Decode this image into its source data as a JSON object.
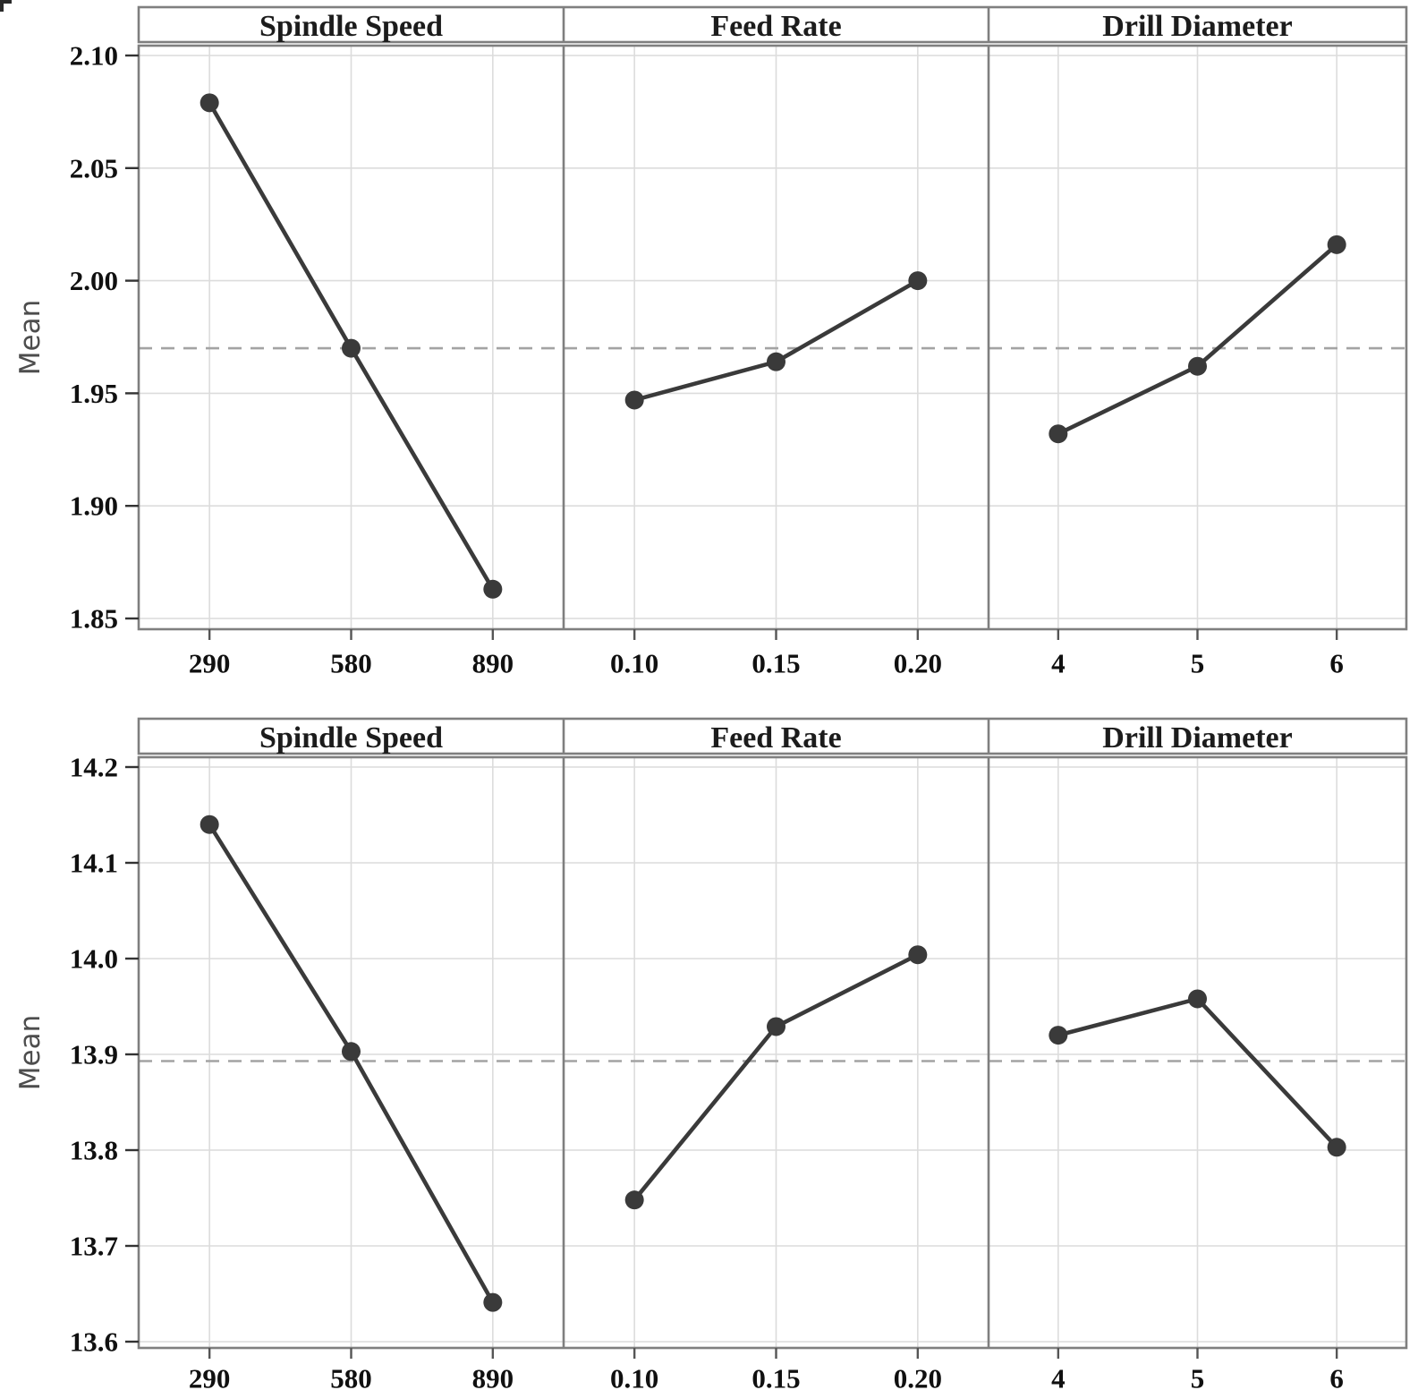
{
  "colors": {
    "series": "#3a3a3a",
    "marker": "#3a3a3a",
    "panel_border": "#7f7f7f",
    "gridline": "#dcdcdc",
    "dashed_mean_line": "#a3a3a3",
    "tick_text": "#101010",
    "axis_label_text": "#4d4d4d",
    "background": "#ffffff"
  },
  "chart_data": [
    {
      "type": "line",
      "name": "upper-main-effects-plot",
      "ylabel": "Mean",
      "ylim": [
        1.844,
        2.104
      ],
      "grid": true,
      "legend": "none",
      "overall_mean": 1.97,
      "yticks": [
        {
          "label": "2.10",
          "value": 2.1
        },
        {
          "label": "2.05",
          "value": 2.05
        },
        {
          "label": "2.00",
          "value": 2.0
        },
        {
          "label": "1.95",
          "value": 1.95
        },
        {
          "label": "1.90",
          "value": 1.9
        },
        {
          "label": "1.85",
          "value": 1.85
        }
      ],
      "panels": [
        {
          "factor": "Spindle Speed",
          "categories": [
            "290",
            "580",
            "890"
          ],
          "values": [
            2.079,
            1.97,
            1.863
          ]
        },
        {
          "factor": "Feed Rate",
          "categories": [
            "0.10",
            "0.15",
            "0.20"
          ],
          "values": [
            1.947,
            1.964,
            2.0
          ]
        },
        {
          "factor": "Drill Diameter",
          "categories": [
            "4",
            "5",
            "6"
          ],
          "values": [
            1.932,
            1.962,
            2.016
          ]
        }
      ]
    },
    {
      "type": "line",
      "name": "lower-main-effects-plot",
      "ylabel": "Mean",
      "ylim": [
        13.593,
        14.211
      ],
      "grid": true,
      "legend": "none",
      "overall_mean": 13.893,
      "yticks": [
        {
          "label": "14.2",
          "value": 14.2
        },
        {
          "label": "14.1",
          "value": 14.1
        },
        {
          "label": "14.0",
          "value": 14.0
        },
        {
          "label": "13.9",
          "value": 13.9
        },
        {
          "label": "13.8",
          "value": 13.8
        },
        {
          "label": "13.7",
          "value": 13.7
        },
        {
          "label": "13.6",
          "value": 13.6
        }
      ],
      "panels": [
        {
          "factor": "Spindle Speed",
          "categories": [
            "290",
            "580",
            "890"
          ],
          "values": [
            14.14,
            13.903,
            13.641
          ]
        },
        {
          "factor": "Feed Rate",
          "categories": [
            "0.10",
            "0.15",
            "0.20"
          ],
          "values": [
            13.748,
            13.929,
            14.004
          ]
        },
        {
          "factor": "Drill Diameter",
          "categories": [
            "4",
            "5",
            "6"
          ],
          "values": [
            13.92,
            13.958,
            13.803
          ]
        }
      ]
    }
  ]
}
